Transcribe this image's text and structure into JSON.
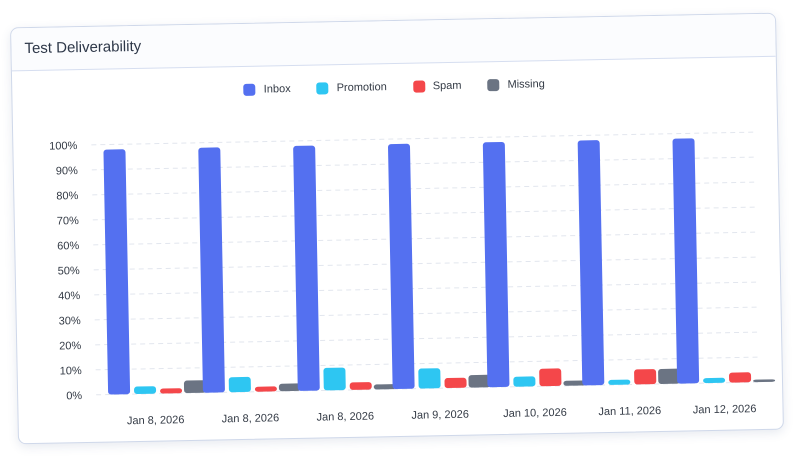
{
  "card": {
    "title": "Test Deliverability"
  },
  "colors": {
    "inbox": "#5470f0",
    "promotion": "#2ec6f2",
    "spam": "#f4474a",
    "missing": "#6b7483",
    "grid": "#e2e6ee"
  },
  "chart_data": {
    "type": "bar",
    "title": "",
    "xlabel": "",
    "ylabel": "",
    "ylim": [
      0,
      100
    ],
    "y_unit": "%",
    "yticks": [
      "100%",
      "90%",
      "80%",
      "70%",
      "60%",
      "50%",
      "40%",
      "30%",
      "20%",
      "10%",
      "0%"
    ],
    "grid": "horizontal dashed",
    "legend": "top-center",
    "categories": [
      "Jan 8, 2026",
      "Jan 8, 2026",
      "Jan 8, 2026",
      "Jan 9, 2026",
      "Jan 10, 2026",
      "Jan 11, 2026",
      "Jan 12, 2026"
    ],
    "series": [
      {
        "name": "Inbox",
        "key": "inbox",
        "values": [
          98,
          98,
          98,
          98,
          98,
          98,
          98
        ]
      },
      {
        "name": "Promotion",
        "key": "promotion",
        "values": [
          3,
          6,
          9,
          8,
          4,
          2,
          2
        ]
      },
      {
        "name": "Spam",
        "key": "spam",
        "values": [
          2,
          2,
          3,
          4,
          7,
          6,
          4
        ]
      },
      {
        "name": "Missing",
        "key": "missing",
        "values": [
          5,
          3,
          2,
          5,
          2,
          6,
          1
        ]
      }
    ]
  }
}
